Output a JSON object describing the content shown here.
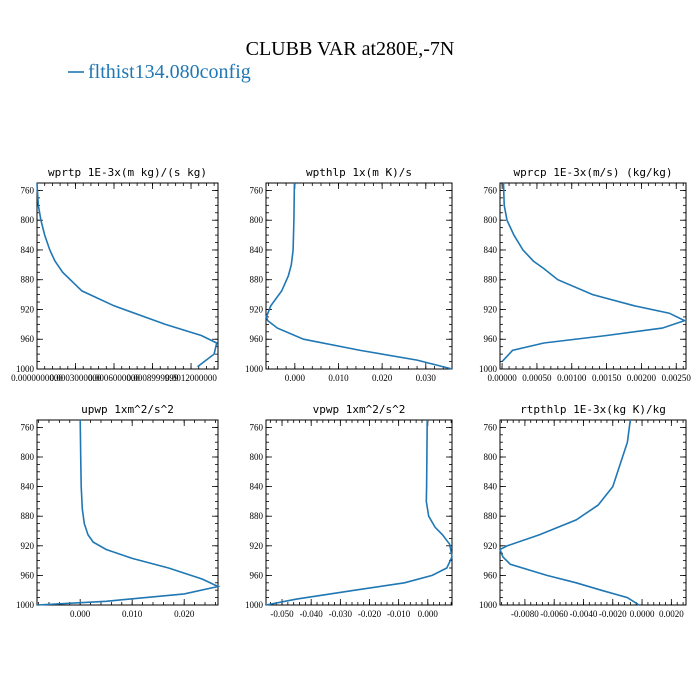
{
  "figure": {
    "title": "CLUBB VAR at280E,-7N",
    "legend_label": "flthist134.080config",
    "line_color": "#1f77b4"
  },
  "chart_data": [
    {
      "type": "line",
      "title": "wprtp  1E-3x(m kg)/(s kg)",
      "xlim": [
        0.0,
        0.00141
      ],
      "ylim": [
        1000,
        750
      ],
      "y_ticks": [
        760,
        800,
        840,
        880,
        920,
        960,
        1000
      ],
      "x_ticks": [
        0.0,
        0.0003,
        0.0006,
        0.0009,
        0.0012
      ],
      "x_tick_labels": [
        "0.0000000000",
        "0.0003000000",
        "0.0006000000",
        "0.0008999999",
        "0.0012000000"
      ],
      "series": [
        {
          "x": [
            0.0,
            1e-05,
            3e-05,
            6e-05,
            0.0001,
            0.00014,
            0.0002,
            0.00035,
            0.0006,
            0.001,
            0.00128,
            0.0014,
            0.00138,
            0.00125
          ],
          "y": [
            750,
            780,
            800,
            820,
            840,
            855,
            870,
            895,
            915,
            940,
            955,
            965,
            980,
            997
          ]
        }
      ]
    },
    {
      "type": "line",
      "title": "wpthlp  1x(m K)/s",
      "xlim": [
        -0.0066,
        0.036
      ],
      "ylim": [
        1000,
        750
      ],
      "y_ticks": [
        760,
        800,
        840,
        880,
        920,
        960,
        1000
      ],
      "x_ticks": [
        0.0,
        0.01,
        0.02,
        0.03
      ],
      "x_tick_labels": [
        "0.000",
        "0.010",
        "0.020",
        "0.030"
      ],
      "series": [
        {
          "x": [
            -0.0001,
            -0.0002,
            -0.0004,
            -0.0008,
            -0.0015,
            -0.003,
            -0.0055,
            -0.0065,
            -0.0062,
            -0.004,
            0.002,
            0.015,
            0.028,
            0.036
          ],
          "y": [
            750,
            800,
            840,
            860,
            875,
            895,
            915,
            930,
            935,
            945,
            960,
            975,
            988,
            1000
          ]
        }
      ]
    },
    {
      "type": "line",
      "title": "wprcp  1E-3x(m/s) (kg/kg)",
      "xlim": [
        -3e-05,
        0.00264
      ],
      "ylim": [
        1000,
        750
      ],
      "y_ticks": [
        760,
        800,
        840,
        880,
        920,
        960,
        1000
      ],
      "x_ticks": [
        0.0,
        0.0005,
        0.001,
        0.0015,
        0.002,
        0.0025
      ],
      "x_tick_labels": [
        "0.00000",
        "0.00050",
        "0.00100",
        "0.00150",
        "0.00200",
        "0.00250"
      ],
      "series": [
        {
          "x": [
            2e-05,
            3e-05,
            7e-05,
            0.00017,
            0.0003,
            0.00045,
            0.0006,
            0.0008,
            0.0013,
            0.0019,
            0.0024,
            0.00262,
            0.0023,
            0.0015,
            0.0006,
            0.00015,
            0.0
          ],
          "y": [
            750,
            780,
            800,
            820,
            840,
            855,
            865,
            880,
            900,
            915,
            925,
            935,
            945,
            955,
            965,
            975,
            990
          ]
        }
      ]
    },
    {
      "type": "line",
      "title": "upwp  1xm^2/s^2",
      "xlim": [
        -0.0083,
        0.0265
      ],
      "ylim": [
        1000,
        750
      ],
      "y_ticks": [
        760,
        800,
        840,
        880,
        920,
        960,
        1000
      ],
      "x_ticks": [
        0.0,
        0.01,
        0.02
      ],
      "x_tick_labels": [
        "0.000",
        "0.010",
        "0.020"
      ],
      "series": [
        {
          "x": [
            0.0,
            0.0001,
            0.0002,
            0.0004,
            0.0008,
            0.0015,
            0.0025,
            0.005,
            0.01,
            0.017,
            0.0235,
            0.0265,
            0.02,
            0.005,
            -0.0083
          ],
          "y": [
            750,
            800,
            840,
            870,
            890,
            905,
            915,
            925,
            937,
            950,
            965,
            975,
            985,
            995,
            1000
          ]
        }
      ]
    },
    {
      "type": "line",
      "title": "vpwp  1xm^2/s^2",
      "xlim": [
        -0.0555,
        0.0083
      ],
      "ylim": [
        1000,
        750
      ],
      "y_ticks": [
        760,
        800,
        840,
        880,
        920,
        960,
        1000
      ],
      "x_ticks": [
        -0.05,
        -0.04,
        -0.03,
        -0.02,
        -0.01,
        0.0
      ],
      "x_tick_labels": [
        "-0.050",
        "-0.040",
        "-0.030",
        "-0.020",
        "-0.010",
        "0.000"
      ],
      "series": [
        {
          "x": [
            -0.0002,
            -0.0003,
            -0.0004,
            -0.0005,
            0.0003,
            0.0025,
            0.005,
            0.0075,
            0.0083,
            0.0065,
            0.0015,
            -0.008,
            -0.025,
            -0.045,
            -0.0555
          ],
          "y": [
            750,
            800,
            840,
            860,
            880,
            895,
            905,
            918,
            935,
            950,
            960,
            970,
            980,
            992,
            1000
          ]
        }
      ]
    },
    {
      "type": "line",
      "title": "rtpthlp  1E-3x(kg K)/kg",
      "xlim": [
        -0.0097,
        0.003
      ],
      "ylim": [
        1000,
        750
      ],
      "y_ticks": [
        760,
        800,
        840,
        880,
        920,
        960,
        1000
      ],
      "x_ticks": [
        -0.008,
        -0.006,
        -0.004,
        -0.002,
        0.0,
        0.002
      ],
      "x_tick_labels": [
        "-0.0080",
        "-0.0060",
        "-0.0040",
        "-0.0020",
        "0.0000",
        "0.0020"
      ],
      "series": [
        {
          "x": [
            -0.0008,
            -0.001,
            -0.0015,
            -0.002,
            -0.003,
            -0.0045,
            -0.007,
            -0.0092,
            -0.0097,
            -0.0095,
            -0.009,
            -0.0065,
            -0.0045,
            -0.0028,
            -0.001,
            -0.0002
          ],
          "y": [
            750,
            780,
            810,
            840,
            865,
            885,
            905,
            920,
            925,
            935,
            945,
            960,
            970,
            980,
            990,
            1000
          ]
        }
      ]
    }
  ]
}
